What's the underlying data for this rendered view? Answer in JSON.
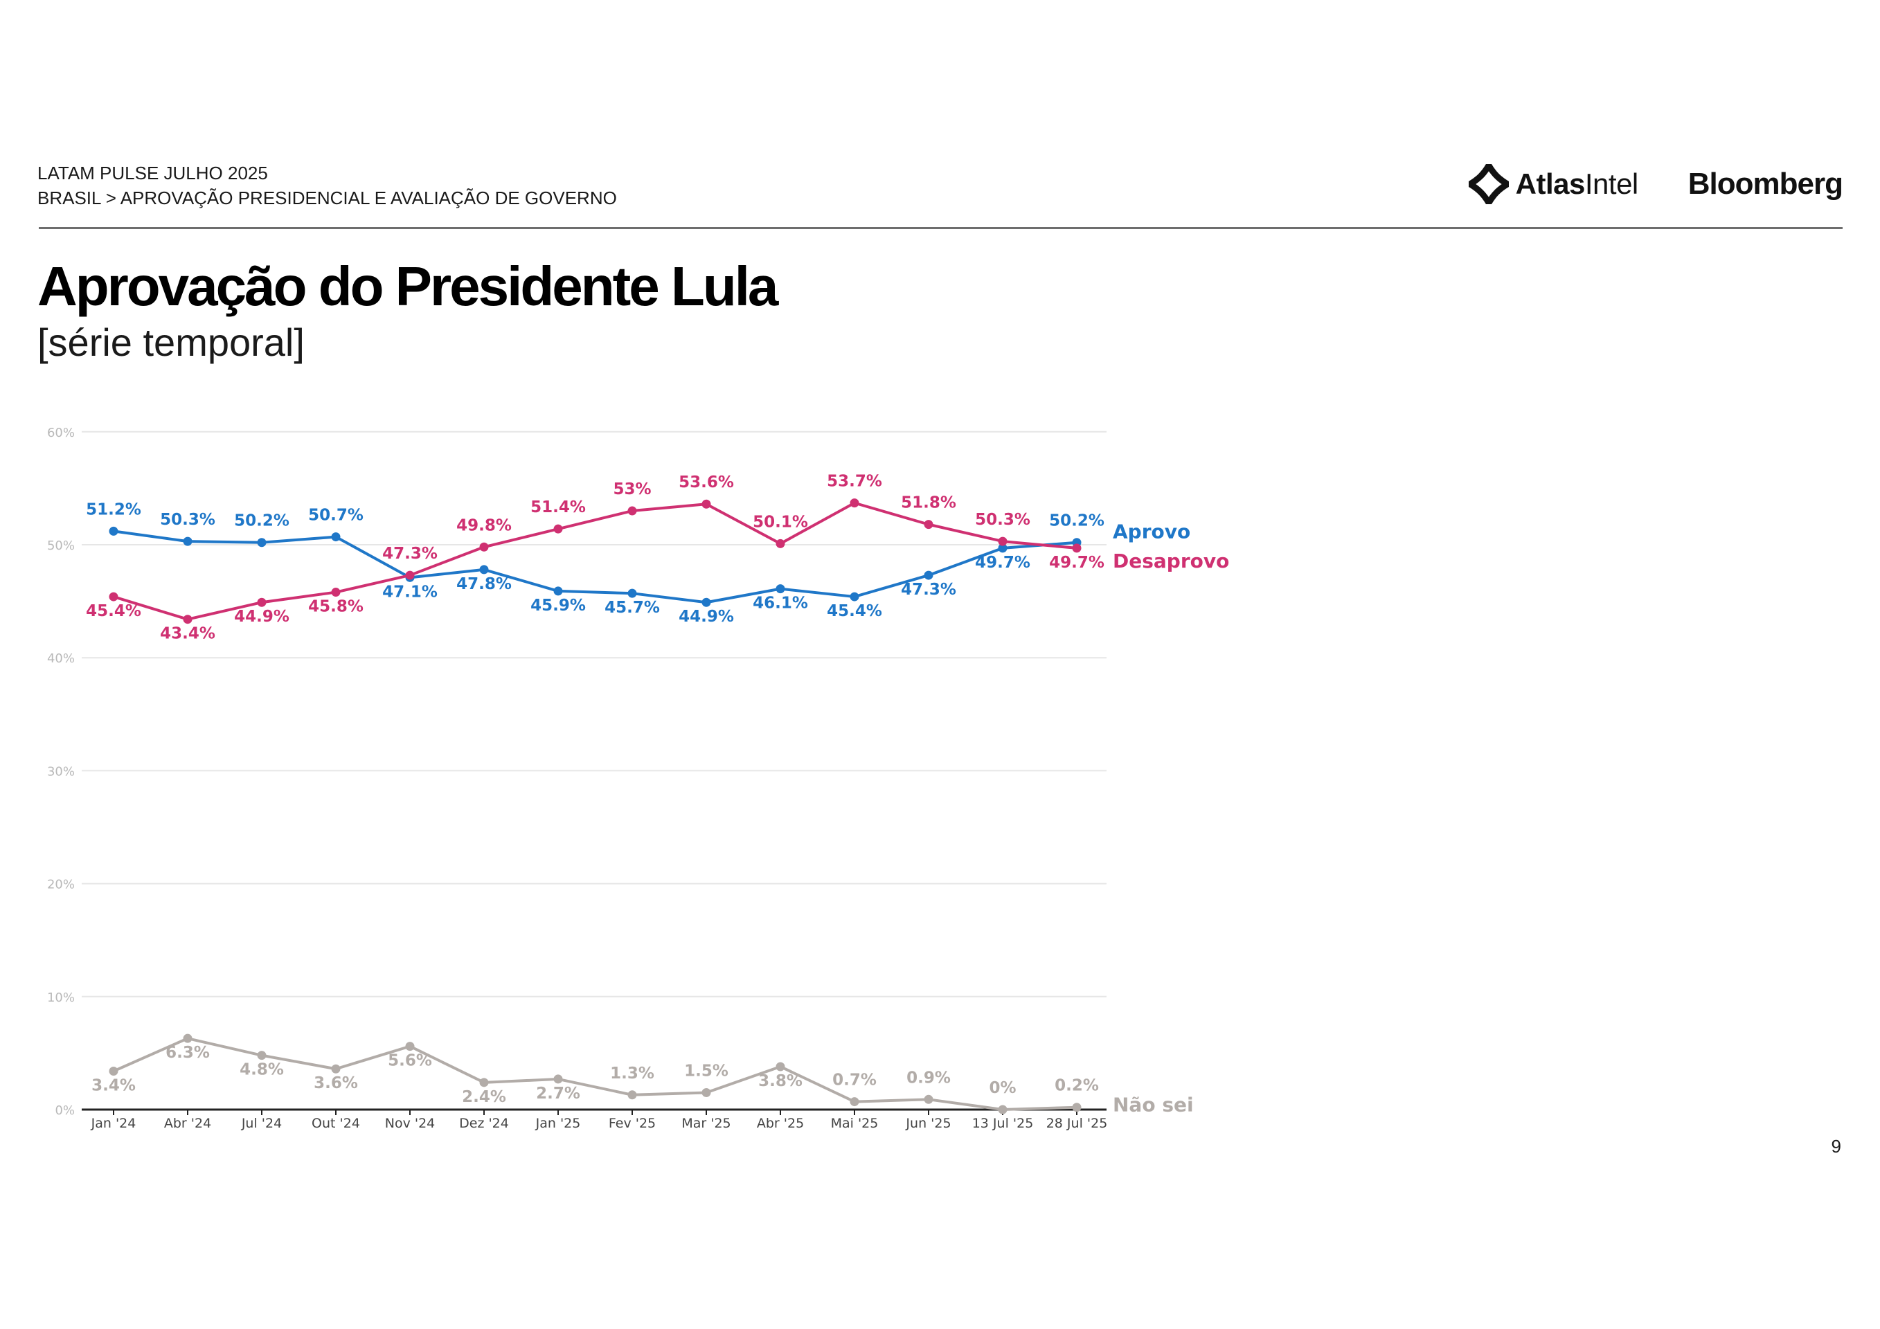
{
  "header": {
    "line1": "LATAM PULSE JULHO 2025",
    "line2": "BRASIL > APROVAÇÃO PRESIDENCIAL E AVALIAÇÃO DE GOVERNO",
    "atlas_bold": "Atlas",
    "atlas_regular": "Intel",
    "bloomberg": "Bloomberg"
  },
  "title": "Aprovação do Presidente Lula",
  "subtitle": "[série temporal]",
  "page_number": "9",
  "colors": {
    "aprovo": "#1f77c8",
    "desaprovo": "#cf3071",
    "nao_sei": "#b2aca8",
    "grid": "#e6e6e6",
    "axis_text": "#b8b8b8"
  },
  "chart_data": {
    "type": "line",
    "categories": [
      "Jan '24",
      "Abr '24",
      "Jul '24",
      "Out '24",
      "Nov '24",
      "Dez '24",
      "Jan '25",
      "Fev '25",
      "Mar '25",
      "Abr '25",
      "Mai '25",
      "Jun '25",
      "13 Jul '25",
      "28 Jul '25"
    ],
    "series": [
      {
        "name": "Aprovo",
        "values": [
          51.2,
          50.3,
          50.2,
          50.7,
          47.1,
          47.8,
          45.9,
          45.7,
          44.9,
          46.1,
          45.4,
          47.3,
          49.7,
          50.2
        ],
        "labels": [
          "51.2%",
          "50.3%",
          "50.2%",
          "50.7%",
          "47.1%",
          "47.8%",
          "45.9%",
          "45.7%",
          "44.9%",
          "46.1%",
          "45.4%",
          "47.3%",
          "49.7%",
          "50.2%"
        ]
      },
      {
        "name": "Desaprovo",
        "values": [
          45.4,
          43.4,
          44.9,
          45.8,
          47.3,
          49.8,
          51.4,
          53,
          53.6,
          50.1,
          53.7,
          51.8,
          50.3,
          49.7
        ],
        "labels": [
          "45.4%",
          "43.4%",
          "44.9%",
          "45.8%",
          "47.3%",
          "49.8%",
          "51.4%",
          "53%",
          "53.6%",
          "50.1%",
          "53.7%",
          "51.8%",
          "50.3%",
          "49.7%"
        ]
      },
      {
        "name": "Não sei",
        "values": [
          3.4,
          6.3,
          4.8,
          3.6,
          5.6,
          2.4,
          2.7,
          1.3,
          1.5,
          3.8,
          0.7,
          0.9,
          0,
          0.2
        ],
        "labels": [
          "3.4%",
          "6.3%",
          "4.8%",
          "3.6%",
          "5.6%",
          "2.4%",
          "2.7%",
          "1.3%",
          "1.5%",
          "3.8%",
          "0.7%",
          "0.9%",
          "0%",
          "0.2%"
        ]
      }
    ],
    "yticks": [
      "0%",
      "10%",
      "20%",
      "30%",
      "40%",
      "50%",
      "60%"
    ],
    "ylim": [
      0,
      60
    ],
    "grid": true,
    "legend": "series labels at right end of lines"
  }
}
